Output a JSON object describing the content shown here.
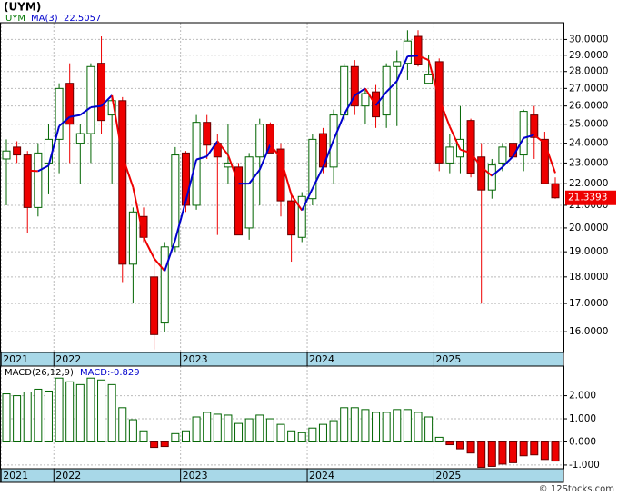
{
  "chart_data": [
    {
      "type": "candlestick",
      "title": "(UYM)",
      "legend_name": "UYM",
      "legend_color": "#007700",
      "ma_name": "MA(3)",
      "ma_last_label": "22.5057",
      "categories": [
        "2021",
        null,
        null,
        null,
        null,
        "2022",
        null,
        null,
        null,
        null,
        null,
        null,
        null,
        null,
        null,
        null,
        null,
        "2023",
        null,
        null,
        null,
        null,
        null,
        null,
        null,
        null,
        null,
        null,
        null,
        "2024",
        null,
        null,
        null,
        null,
        null,
        null,
        null,
        null,
        null,
        null,
        null,
        "2025",
        null,
        null,
        null,
        null,
        null,
        null,
        null,
        null,
        null,
        null,
        null
      ],
      "open": [
        23.2,
        23.8,
        23.4,
        20.9,
        23.0,
        24.2,
        27.3,
        24.0,
        24.5,
        28.5,
        25.5,
        26.3,
        18.5,
        20.5,
        18.0,
        16.3,
        19.2,
        23.5,
        21.0,
        25.1,
        24.0,
        22.8,
        22.8,
        20.0,
        23.3,
        25.0,
        23.7,
        21.2,
        19.6,
        21.3,
        24.5,
        22.8,
        25.5,
        28.3,
        26.0,
        26.8,
        25.5,
        28.3,
        28.5,
        30.2,
        27.3,
        28.6,
        23.0,
        23.3,
        25.2,
        23.3,
        21.7,
        23.0,
        24.0,
        23.4,
        25.5,
        24.2,
        22.0
      ],
      "high": [
        24.2,
        24.1,
        23.6,
        24.0,
        25.0,
        27.3,
        28.5,
        25.0,
        28.5,
        30.2,
        26.5,
        26.5,
        20.9,
        20.9,
        18.8,
        19.4,
        23.8,
        23.6,
        25.5,
        25.5,
        24.5,
        25.0,
        23.0,
        23.5,
        25.3,
        25.1,
        24.0,
        21.5,
        21.6,
        24.5,
        24.8,
        25.8,
        28.5,
        28.7,
        27.0,
        27.2,
        28.5,
        29.3,
        30.6,
        30.6,
        29.0,
        28.8,
        24.5,
        26.0,
        25.3,
        24.0,
        23.2,
        24.0,
        26.0,
        25.8,
        26.0,
        24.6,
        22.3
      ],
      "low": [
        21.0,
        23.0,
        19.8,
        20.5,
        21.5,
        22.5,
        23.0,
        22.0,
        23.0,
        24.5,
        22.0,
        17.8,
        17.0,
        19.4,
        15.4,
        16.0,
        19.0,
        20.7,
        20.8,
        23.2,
        19.7,
        22.0,
        19.8,
        19.5,
        21.0,
        23.5,
        20.5,
        18.6,
        19.4,
        21.0,
        22.5,
        22.0,
        25.2,
        25.5,
        25.0,
        24.8,
        24.8,
        24.9,
        27.5,
        28.3,
        27.3,
        22.6,
        22.5,
        22.5,
        22.3,
        17.0,
        21.3,
        22.6,
        23.0,
        22.6,
        23.2,
        22.0,
        21.3
      ],
      "close": [
        23.6,
        23.4,
        20.9,
        23.5,
        24.2,
        27.0,
        25.0,
        24.5,
        28.3,
        25.2,
        26.3,
        18.5,
        20.7,
        19.6,
        15.9,
        19.2,
        23.4,
        21.0,
        25.1,
        23.9,
        23.3,
        23.0,
        19.7,
        23.3,
        25.0,
        23.5,
        21.2,
        19.7,
        21.4,
        24.2,
        22.8,
        25.5,
        28.3,
        26.0,
        26.7,
        25.4,
        28.3,
        28.6,
        29.9,
        28.4,
        27.8,
        23.0,
        23.8,
        24.2,
        22.5,
        21.7,
        22.9,
        23.8,
        23.3,
        25.7,
        24.3,
        22.0,
        21.3393
      ],
      "close_label": "21.3393",
      "ma": [
        null,
        null,
        22.63,
        22.6,
        22.87,
        24.9,
        25.4,
        25.5,
        25.93,
        26.0,
        26.6,
        23.33,
        21.83,
        19.6,
        18.73,
        18.23,
        19.5,
        21.2,
        23.17,
        23.33,
        24.1,
        23.4,
        22.0,
        22.0,
        22.67,
        23.93,
        23.23,
        21.47,
        20.77,
        21.77,
        22.8,
        24.17,
        25.53,
        26.6,
        27.0,
        26.03,
        26.8,
        27.43,
        28.93,
        28.97,
        28.7,
        26.4,
        24.87,
        23.67,
        23.5,
        22.8,
        22.37,
        22.8,
        23.33,
        24.27,
        24.43,
        24.0,
        22.51
      ],
      "up_color": "#006400",
      "down_color": "#ee0000",
      "ma_up_color": "#0000cc",
      "ma_down_color": "#ee0000",
      "log_scale": true,
      "grid": true,
      "ylim": [
        15.3,
        31.1
      ],
      "yticks": [
        {
          "value": 16,
          "label": "16.0000"
        },
        {
          "value": 17,
          "label": "17.0000"
        },
        {
          "value": 18,
          "label": "18.0000"
        },
        {
          "value": 19,
          "label": "19.0000"
        },
        {
          "value": 20,
          "label": "20.0000"
        },
        {
          "value": 21,
          "label": "21.0000"
        },
        {
          "value": 22,
          "label": "22.0000"
        },
        {
          "value": 23,
          "label": "23.0000"
        },
        {
          "value": 24,
          "label": "24.0000"
        },
        {
          "value": 25,
          "label": "25.0000"
        },
        {
          "value": 26,
          "label": "26.0000"
        },
        {
          "value": 27,
          "label": "27.0000"
        },
        {
          "value": 28,
          "label": "28.0000"
        },
        {
          "value": 29,
          "label": "29.0000"
        },
        {
          "value": 30,
          "label": "30.0000"
        }
      ]
    },
    {
      "type": "bar",
      "title": "MACD(26,12,9)",
      "value_label": "MACD:-0.829",
      "values": [
        2.08,
        2.0,
        2.16,
        2.28,
        2.2,
        2.76,
        2.6,
        2.48,
        2.76,
        2.68,
        2.48,
        1.48,
        0.96,
        0.48,
        -0.24,
        -0.2,
        0.36,
        0.48,
        1.08,
        1.28,
        1.2,
        1.16,
        0.8,
        1.0,
        1.16,
        1.0,
        0.76,
        0.48,
        0.4,
        0.6,
        0.76,
        0.92,
        1.48,
        1.48,
        1.4,
        1.28,
        1.28,
        1.4,
        1.4,
        1.28,
        1.08,
        0.2,
        -0.12,
        -0.3,
        -0.48,
        -1.1,
        -1.06,
        -0.96,
        -0.9,
        -0.6,
        -0.56,
        -0.76,
        -0.829
      ],
      "pos_color": "#006400",
      "neg_color": "#ee0000",
      "grid": true,
      "ylim": [
        -1.16,
        3.28
      ],
      "yticks": [
        {
          "value": -1,
          "label": "-1.000"
        },
        {
          "value": 0,
          "label": "0.000"
        },
        {
          "value": 1,
          "label": "1.000"
        },
        {
          "value": 2,
          "label": "2.000"
        }
      ]
    }
  ],
  "footer": "© 12Stocks.com"
}
